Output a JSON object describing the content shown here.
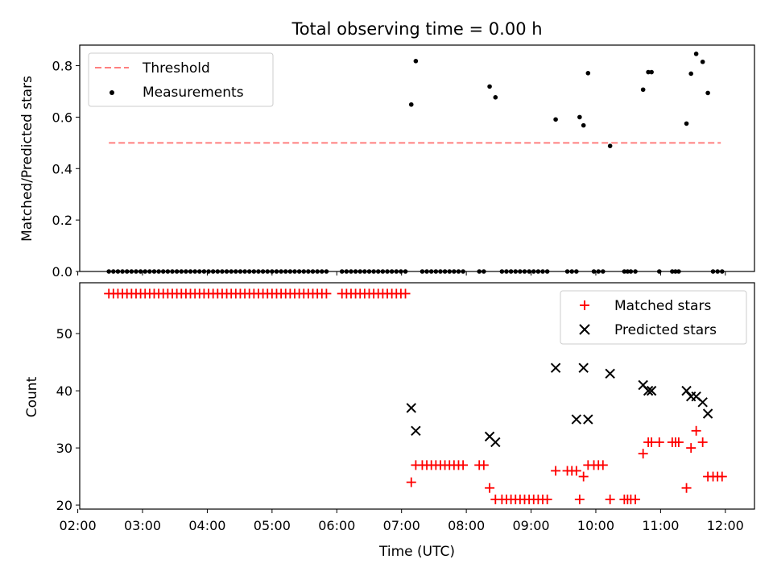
{
  "chart_data": [
    {
      "type": "scatter",
      "title": "Total observing time = 0.00 h",
      "ylabel": "Matched/Predicted stars",
      "xlabel": "",
      "xlim": [
        2.03,
        12.45
      ],
      "ylim": [
        0.0,
        0.88
      ],
      "yticks": [
        0.0,
        0.2,
        0.4,
        0.6,
        0.8
      ],
      "ytick_labels": [
        "0.0",
        "0.2",
        "0.4",
        "0.6",
        "0.8"
      ],
      "legend": {
        "position": "upper-left",
        "entries": [
          {
            "label": "Threshold",
            "style": "dashed-line",
            "color": "#ff7f7f"
          },
          {
            "label": "Measurements",
            "style": "dot",
            "color": "#000000"
          }
        ]
      },
      "threshold": {
        "y": 0.5,
        "x_start": 2.48,
        "x_end": 11.93,
        "color": "#ff7f7f"
      },
      "series": [
        {
          "name": "Measurements",
          "color": "#000000",
          "x": [
            2.48,
            2.55,
            2.62,
            2.69,
            2.76,
            2.83,
            2.9,
            2.97,
            3.04,
            3.11,
            3.18,
            3.25,
            3.32,
            3.39,
            3.46,
            3.53,
            3.6,
            3.67,
            3.74,
            3.81,
            3.88,
            3.95,
            4.02,
            4.09,
            4.16,
            4.23,
            4.3,
            4.37,
            4.44,
            4.51,
            4.58,
            4.65,
            4.72,
            4.79,
            4.86,
            4.93,
            5.0,
            5.07,
            5.14,
            5.21,
            5.28,
            5.35,
            5.42,
            5.49,
            5.56,
            5.63,
            5.7,
            5.77,
            5.84,
            6.08,
            6.15,
            6.22,
            6.29,
            6.36,
            6.43,
            6.5,
            6.57,
            6.64,
            6.71,
            6.78,
            6.85,
            6.92,
            6.99,
            7.06,
            7.15,
            7.22,
            7.32,
            7.39,
            7.46,
            7.53,
            7.6,
            7.67,
            7.74,
            7.81,
            7.88,
            7.95,
            8.2,
            8.27,
            8.36,
            8.45,
            8.55,
            8.62,
            8.69,
            8.76,
            8.83,
            8.9,
            8.97,
            9.04,
            9.11,
            9.18,
            9.25,
            9.38,
            9.56,
            9.63,
            9.7,
            9.75,
            9.81,
            9.88,
            9.97,
            10.04,
            10.11,
            10.22,
            10.44,
            10.49,
            10.54,
            10.61,
            10.73,
            10.81,
            10.86,
            10.98,
            11.18,
            11.23,
            11.28,
            11.4,
            11.47,
            11.55,
            11.65,
            11.73,
            11.81,
            11.88,
            11.95
          ],
          "y": [
            0,
            0,
            0,
            0,
            0,
            0,
            0,
            0,
            0,
            0,
            0,
            0,
            0,
            0,
            0,
            0,
            0,
            0,
            0,
            0,
            0,
            0,
            0,
            0,
            0,
            0,
            0,
            0,
            0,
            0,
            0,
            0,
            0,
            0,
            0,
            0,
            0,
            0,
            0,
            0,
            0,
            0,
            0,
            0,
            0,
            0,
            0,
            0,
            0,
            0,
            0,
            0,
            0,
            0,
            0,
            0,
            0,
            0,
            0,
            0,
            0,
            0,
            0,
            0,
            0.649,
            0.818,
            0,
            0,
            0,
            0,
            0,
            0,
            0,
            0,
            0,
            0,
            0,
            0,
            0.719,
            0.677,
            0,
            0,
            0,
            0,
            0,
            0,
            0,
            0,
            0,
            0,
            0,
            0.591,
            0,
            0,
            0,
            0.6,
            0.568,
            0.771,
            0,
            0,
            0,
            0.488,
            0,
            0,
            0,
            0,
            0.707,
            0.775,
            0.775,
            0,
            0,
            0,
            0,
            0.575,
            0.769,
            0.846,
            0.815,
            0.694,
            0,
            0,
            0
          ]
        }
      ]
    },
    {
      "type": "scatter",
      "title": "",
      "xlabel": "Time (UTC)",
      "ylabel": "Count",
      "xlim": [
        2.03,
        12.45
      ],
      "ylim": [
        19.3,
        58.9
      ],
      "yticks": [
        20,
        30,
        40,
        50
      ],
      "ytick_labels": [
        "20",
        "30",
        "40",
        "50"
      ],
      "xticks": [
        2,
        3,
        4,
        5,
        6,
        7,
        8,
        9,
        10,
        11,
        12
      ],
      "xtick_labels": [
        "02:00",
        "03:00",
        "04:00",
        "05:00",
        "06:00",
        "07:00",
        "08:00",
        "09:00",
        "10:00",
        "11:00",
        "12:00"
      ],
      "legend": {
        "position": "upper-right",
        "entries": [
          {
            "label": "Matched stars",
            "style": "plus",
            "color": "#ff0000"
          },
          {
            "label": "Predicted stars",
            "style": "x",
            "color": "#000000"
          }
        ]
      },
      "series": [
        {
          "name": "Matched stars",
          "marker": "plus",
          "color": "#ff0000",
          "x": [
            2.48,
            2.55,
            2.62,
            2.69,
            2.76,
            2.83,
            2.9,
            2.97,
            3.04,
            3.11,
            3.18,
            3.25,
            3.32,
            3.39,
            3.46,
            3.53,
            3.6,
            3.67,
            3.74,
            3.81,
            3.88,
            3.95,
            4.02,
            4.09,
            4.16,
            4.23,
            4.3,
            4.37,
            4.44,
            4.51,
            4.58,
            4.65,
            4.72,
            4.79,
            4.86,
            4.93,
            5.0,
            5.07,
            5.14,
            5.21,
            5.28,
            5.35,
            5.42,
            5.49,
            5.56,
            5.63,
            5.7,
            5.77,
            5.84,
            6.08,
            6.15,
            6.22,
            6.29,
            6.36,
            6.43,
            6.5,
            6.57,
            6.64,
            6.71,
            6.78,
            6.85,
            6.92,
            6.99,
            7.06,
            7.15,
            7.22,
            7.32,
            7.39,
            7.46,
            7.53,
            7.6,
            7.67,
            7.74,
            7.81,
            7.88,
            7.95,
            8.2,
            8.27,
            8.36,
            8.45,
            8.55,
            8.62,
            8.69,
            8.76,
            8.83,
            8.9,
            8.97,
            9.04,
            9.11,
            9.18,
            9.25,
            9.38,
            9.56,
            9.63,
            9.7,
            9.75,
            9.81,
            9.88,
            9.97,
            10.04,
            10.11,
            10.22,
            10.44,
            10.49,
            10.54,
            10.61,
            10.73,
            10.81,
            10.86,
            10.98,
            11.18,
            11.23,
            11.28,
            11.4,
            11.47,
            11.55,
            11.65,
            11.73,
            11.81,
            11.88,
            11.95
          ],
          "y": [
            57,
            57,
            57,
            57,
            57,
            57,
            57,
            57,
            57,
            57,
            57,
            57,
            57,
            57,
            57,
            57,
            57,
            57,
            57,
            57,
            57,
            57,
            57,
            57,
            57,
            57,
            57,
            57,
            57,
            57,
            57,
            57,
            57,
            57,
            57,
            57,
            57,
            57,
            57,
            57,
            57,
            57,
            57,
            57,
            57,
            57,
            57,
            57,
            57,
            57,
            57,
            57,
            57,
            57,
            57,
            57,
            57,
            57,
            57,
            57,
            57,
            57,
            57,
            57,
            24,
            27,
            27,
            27,
            27,
            27,
            27,
            27,
            27,
            27,
            27,
            27,
            27,
            27,
            23,
            21,
            21,
            21,
            21,
            21,
            21,
            21,
            21,
            21,
            21,
            21,
            21,
            26,
            26,
            26,
            26,
            21,
            25,
            27,
            27,
            27,
            27,
            21,
            21,
            21,
            21,
            21,
            29,
            31,
            31,
            31,
            31,
            31,
            31,
            23,
            30,
            33,
            31,
            25,
            25,
            25,
            25
          ]
        },
        {
          "name": "Predicted stars",
          "marker": "x",
          "color": "#000000",
          "x": [
            7.15,
            7.22,
            8.36,
            8.45,
            9.38,
            9.7,
            9.81,
            9.88,
            10.22,
            10.73,
            10.81,
            10.86,
            11.4,
            11.47,
            11.55,
            11.65,
            11.73
          ],
          "y": [
            37,
            33,
            32,
            31,
            44,
            35,
            44,
            35,
            43,
            41,
            40,
            40,
            40,
            39,
            39,
            38,
            36
          ]
        }
      ]
    }
  ]
}
